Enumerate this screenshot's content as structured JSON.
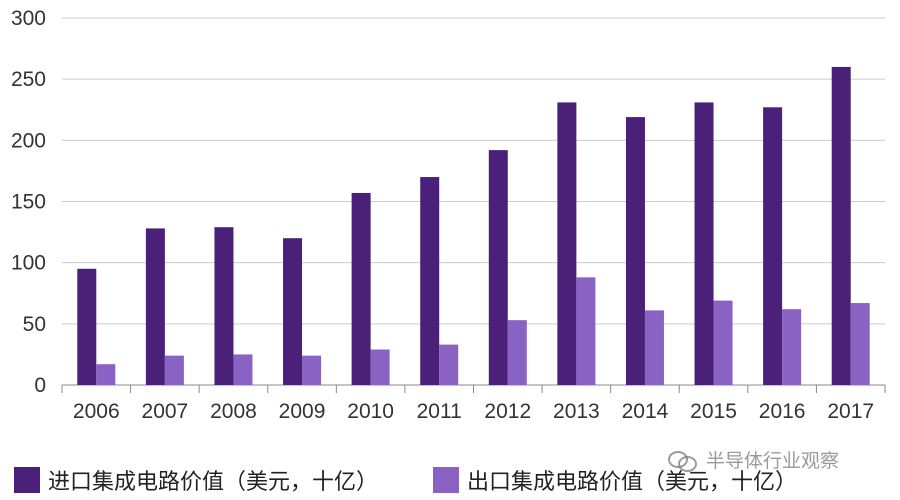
{
  "chart_data": {
    "type": "bar",
    "categories": [
      "2006",
      "2007",
      "2008",
      "2009",
      "2010",
      "2011",
      "2012",
      "2013",
      "2014",
      "2015",
      "2016",
      "2017"
    ],
    "series": [
      {
        "name": "进口集成电路价值（美元，十亿）",
        "color": "#4a2078",
        "values": [
          95,
          128,
          129,
          120,
          157,
          170,
          192,
          231,
          219,
          231,
          227,
          260
        ]
      },
      {
        "name": "出口集成电路价值（美元，十亿）",
        "color": "#8a62c4",
        "values": [
          17,
          24,
          25,
          24,
          29,
          33,
          53,
          88,
          61,
          69,
          62,
          67
        ]
      }
    ],
    "title": "",
    "xlabel": "",
    "ylabel": "",
    "ylim": [
      0,
      300
    ],
    "yticks": [
      "0",
      "50",
      "100",
      "150",
      "200",
      "250",
      "300"
    ],
    "grid": true,
    "legend_position": "bottom"
  },
  "watermark": {
    "text": "半导体行业观察",
    "icon": "wechat-icon"
  }
}
